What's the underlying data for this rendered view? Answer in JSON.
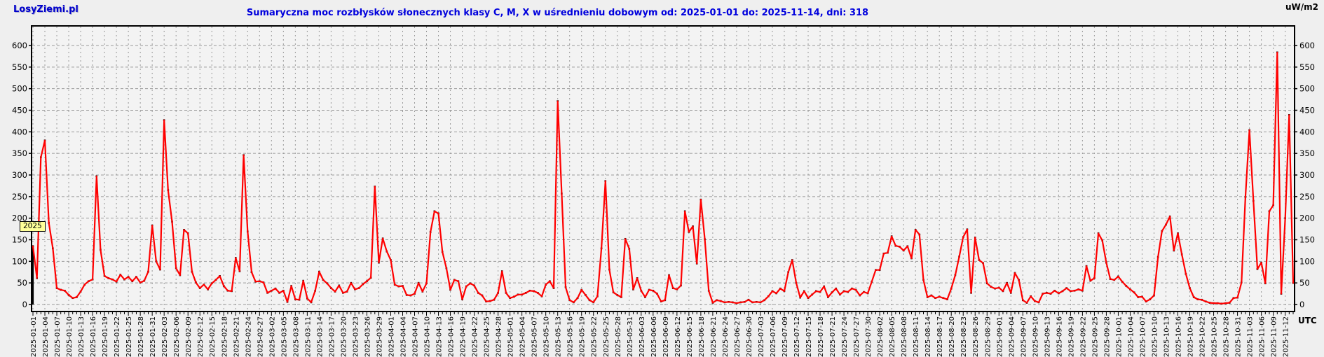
{
  "header": {
    "logo": "LosyZiemi.pl",
    "title": "Sumaryczna moc rozbłysków słonecznych klasy C, M, X w uśrednieniu dobowym od: 2025-01-01 do: 2025-11-14, dni: 318",
    "y_unit_label": "uW/m2"
  },
  "footer": {
    "x_unit_label": "UTC"
  },
  "colors": {
    "title": "#0000dd",
    "logo": "#0000cc",
    "line": "#ff0000",
    "marker": "#000000",
    "grid": "#999999",
    "background": "#efefef",
    "plot_background": "#f3f3f3",
    "year_badge_bg": "#ffff99"
  },
  "chart_data": {
    "type": "line",
    "title": "Sumaryczna moc rozbłysków słonecznych klasy C, M, X w uśrednieniu dobowym od: 2025-01-01 do: 2025-11-14, dni: 318",
    "ylabel": "uW/m2",
    "xlabel": "UTC",
    "date_start": "2025-01-01",
    "date_end": "2025-11-14",
    "days": 318,
    "year_label": "2025",
    "ylim": [
      0,
      600
    ],
    "y_tick_step": 50,
    "y_ticks": [
      0,
      50,
      100,
      150,
      200,
      250,
      300,
      350,
      400,
      450,
      500,
      550,
      600
    ],
    "grid": true,
    "x_tick_labels": [
      "2025-01-01",
      "2025-01-04",
      "2025-01-07",
      "2025-01-10",
      "2025-01-13",
      "2025-01-16",
      "2025-01-19",
      "2025-01-22",
      "2025-01-25",
      "2025-01-28",
      "2025-01-31",
      "2025-02-03",
      "2025-02-06",
      "2025-02-09",
      "2025-02-12",
      "2025-02-15",
      "2025-02-18",
      "2025-02-21",
      "2025-02-24",
      "2025-02-27",
      "2025-03-02",
      "2025-03-05",
      "2025-03-08",
      "2025-03-11",
      "2025-03-14",
      "2025-03-17",
      "2025-03-20",
      "2025-03-23",
      "2025-03-26",
      "2025-03-29",
      "2025-04-01",
      "2025-04-04",
      "2025-04-07",
      "2025-04-10",
      "2025-04-13",
      "2025-04-16",
      "2025-04-19",
      "2025-04-22",
      "2025-04-25",
      "2025-04-28",
      "2025-05-01",
      "2025-05-04",
      "2025-05-07",
      "2025-05-10",
      "2025-05-13",
      "2025-05-16",
      "2025-05-19",
      "2025-05-22",
      "2025-05-25",
      "2025-05-28",
      "2025-05-31",
      "2025-06-03",
      "2025-06-06",
      "2025-06-09",
      "2025-06-12",
      "2025-06-15",
      "2025-06-18",
      "2025-06-21",
      "2025-06-24",
      "2025-06-27",
      "2025-06-30",
      "2025-07-03",
      "2025-07-06",
      "2025-07-09",
      "2025-07-12",
      "2025-07-15",
      "2025-07-18",
      "2025-07-21",
      "2025-07-24",
      "2025-07-27",
      "2025-07-30",
      "2025-08-02",
      "2025-08-05",
      "2025-08-08",
      "2025-08-11",
      "2025-08-14",
      "2025-08-17",
      "2025-08-20",
      "2025-08-23",
      "2025-08-26",
      "2025-08-29",
      "2025-09-01",
      "2025-09-04",
      "2025-09-07",
      "2025-09-10",
      "2025-09-13",
      "2025-09-16",
      "2025-09-19",
      "2025-09-22",
      "2025-09-25",
      "2025-09-28",
      "2025-10-01",
      "2025-10-04",
      "2025-10-07",
      "2025-10-10",
      "2025-10-13",
      "2025-10-16",
      "2025-10-19",
      "2025-10-22",
      "2025-10-25",
      "2025-10-28",
      "2025-10-31",
      "2025-11-03",
      "2025-11-06",
      "2025-11-09",
      "2025-11-12"
    ],
    "values": [
      135,
      61,
      341,
      380,
      189,
      130,
      38,
      34,
      32,
      22,
      15,
      17,
      30,
      46,
      54,
      58,
      297,
      127,
      66,
      61,
      58,
      53,
      69,
      58,
      64,
      54,
      64,
      51,
      55,
      76,
      183,
      100,
      81,
      427,
      265,
      192,
      84,
      68,
      173,
      165,
      76,
      51,
      38,
      46,
      35,
      49,
      57,
      66,
      43,
      32,
      31,
      108,
      77,
      346,
      169,
      75,
      53,
      54,
      51,
      27,
      32,
      37,
      27,
      32,
      6,
      43,
      12,
      11,
      55,
      14,
      5,
      32,
      76,
      57,
      49,
      38,
      30,
      44,
      27,
      30,
      50,
      35,
      38,
      47,
      54,
      62,
      273,
      97,
      153,
      123,
      103,
      46,
      42,
      43,
      22,
      21,
      25,
      50,
      30,
      49,
      168,
      216,
      211,
      122,
      84,
      34,
      57,
      54,
      12,
      42,
      49,
      44,
      27,
      21,
      7,
      8,
      11,
      27,
      77,
      27,
      15,
      18,
      23,
      23,
      27,
      32,
      31,
      27,
      19,
      46,
      54,
      38,
      471,
      257,
      40,
      10,
      5,
      15,
      34,
      22,
      10,
      5,
      19,
      130,
      286,
      81,
      28,
      22,
      17,
      152,
      129,
      35,
      61,
      32,
      17,
      34,
      32,
      25,
      7,
      10,
      68,
      38,
      35,
      44,
      216,
      168,
      181,
      95,
      243,
      151,
      32,
      4,
      10,
      8,
      5,
      6,
      5,
      3,
      5,
      6,
      11,
      5,
      6,
      5,
      10,
      19,
      31,
      26,
      37,
      31,
      75,
      103,
      50,
      16,
      31,
      15,
      23,
      31,
      29,
      42,
      17,
      28,
      37,
      23,
      31,
      29,
      37,
      34,
      21,
      29,
      26,
      53,
      80,
      80,
      118,
      120,
      158,
      136,
      134,
      125,
      135,
      107,
      173,
      162,
      57,
      17,
      21,
      15,
      18,
      15,
      12,
      37,
      68,
      111,
      156,
      174,
      27,
      155,
      103,
      96,
      49,
      41,
      37,
      39,
      31,
      50,
      27,
      73,
      57,
      10,
      4,
      19,
      8,
      5,
      25,
      27,
      25,
      32,
      26,
      31,
      38,
      31,
      32,
      35,
      32,
      89,
      55,
      61,
      165,
      148,
      97,
      59,
      57,
      65,
      53,
      43,
      35,
      28,
      17,
      18,
      7,
      12,
      21,
      110,
      170,
      185,
      204,
      125,
      165,
      116,
      71,
      38,
      17,
      12,
      11,
      7,
      4,
      3,
      3,
      2,
      3,
      4,
      15,
      16,
      51,
      249,
      404,
      240,
      82,
      97,
      49,
      216,
      230,
      584,
      25,
      200,
      439,
      50
    ]
  }
}
